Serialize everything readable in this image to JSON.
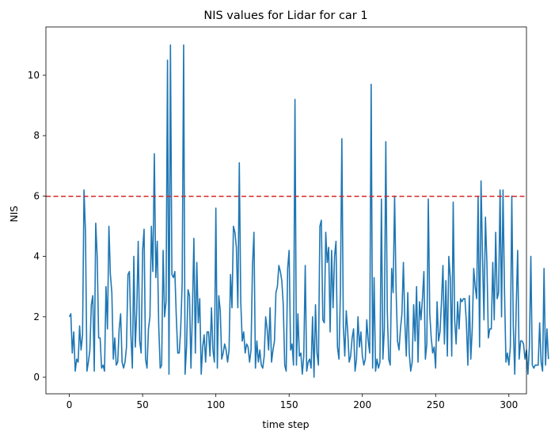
{
  "chart_data": {
    "type": "line",
    "title": "NIS values for Lidar for car 1",
    "xlabel": "time step",
    "ylabel": "NIS",
    "xlim": [
      -16,
      312
    ],
    "ylim": [
      -0.55,
      11.6
    ],
    "x_ticks": [
      0,
      50,
      100,
      150,
      200,
      250,
      300
    ],
    "y_ticks": [
      0,
      2,
      4,
      6,
      8,
      10
    ],
    "grid": false,
    "legend": "none",
    "threshold": {
      "y": 5.991,
      "style": "dashed",
      "color": "#d62728"
    },
    "series": [
      {
        "color": "#1f77b4",
        "x_start": 0,
        "x_step": 1,
        "values": [
          2.0,
          2.1,
          0.8,
          1.5,
          0.2,
          0.6,
          0.5,
          1.7,
          0.9,
          1.4,
          6.2,
          4.8,
          0.2,
          0.5,
          0.9,
          2.4,
          2.7,
          0.2,
          5.1,
          4.0,
          1.3,
          1.3,
          0.3,
          0.4,
          0.2,
          3.0,
          1.6,
          5.0,
          3.4,
          2.8,
          0.6,
          1.3,
          0.4,
          0.5,
          1.6,
          2.1,
          0.5,
          0.3,
          0.5,
          1.0,
          3.4,
          3.5,
          1.4,
          0.3,
          4.0,
          1.0,
          2.2,
          4.5,
          1.2,
          0.8,
          4.2,
          4.9,
          0.6,
          0.3,
          1.6,
          2.0,
          5.0,
          3.5,
          7.4,
          3.3,
          4.5,
          1.7,
          0.3,
          0.4,
          4.2,
          2.0,
          2.5,
          10.5,
          0.1,
          11.0,
          3.4,
          3.3,
          3.5,
          2.0,
          0.8,
          0.8,
          1.6,
          3.1,
          11.0,
          0.1,
          1.0,
          2.9,
          2.7,
          0.3,
          2.2,
          4.6,
          0.8,
          3.8,
          1.8,
          2.6,
          0.1,
          1.0,
          1.4,
          0.5,
          1.5,
          1.5,
          0.7,
          2.3,
          0.9,
          0.5,
          5.6,
          0.3,
          2.7,
          2.2,
          0.6,
          0.8,
          1.1,
          0.9,
          0.5,
          0.9,
          3.4,
          2.3,
          5.0,
          4.8,
          4.3,
          2.3,
          7.1,
          2.5,
          1.2,
          1.5,
          0.8,
          1.1,
          1.0,
          0.5,
          0.9,
          3.7,
          4.8,
          0.3,
          1.2,
          0.5,
          0.9,
          0.4,
          0.3,
          0.7,
          2.0,
          1.6,
          0.9,
          2.3,
          0.5,
          0.9,
          1.2,
          2.8,
          3.0,
          3.7,
          3.5,
          3.2,
          2.4,
          0.4,
          0.2,
          3.6,
          4.2,
          0.9,
          1.1,
          0.4,
          9.2,
          0.4,
          2.1,
          0.7,
          0.8,
          0.1,
          0.7,
          3.7,
          0.2,
          0.5,
          0.6,
          0.3,
          2.0,
          0.0,
          2.4,
          0.8,
          0.4,
          5.0,
          5.2,
          1.9,
          1.8,
          4.8,
          3.8,
          4.3,
          1.5,
          4.2,
          2.3,
          4.0,
          4.5,
          1.0,
          0.6,
          2.8,
          7.9,
          1.7,
          0.7,
          2.2,
          1.5,
          0.5,
          0.7,
          1.3,
          1.6,
          0.2,
          0.6,
          2.0,
          1.0,
          1.5,
          0.7,
          0.4,
          0.6,
          1.9,
          1.2,
          0.8,
          9.7,
          0.3,
          3.3,
          0.2,
          0.6,
          0.3,
          0.5,
          5.9,
          0.6,
          1.6,
          7.8,
          2.2,
          0.6,
          0.4,
          3.6,
          2.8,
          6.0,
          2.9,
          1.2,
          0.9,
          1.6,
          2.1,
          3.8,
          1.8,
          0.7,
          2.8,
          0.8,
          0.2,
          0.5,
          2.4,
          1.2,
          3.0,
          0.5,
          2.5,
          1.9,
          2.6,
          3.5,
          0.6,
          1.1,
          5.9,
          2.1,
          1.3,
          0.8,
          1.0,
          0.3,
          2.5,
          1.2,
          1.5,
          2.5,
          3.7,
          1.1,
          3.2,
          0.7,
          4.0,
          3.3,
          0.7,
          5.8,
          1.9,
          1.1,
          2.5,
          1.6,
          2.6,
          2.5,
          2.6,
          2.6,
          1.8,
          0.4,
          2.7,
          0.6,
          1.6,
          3.6,
          3.0,
          2.6,
          6.0,
          1.0,
          6.5,
          4.0,
          1.9,
          5.3,
          3.8,
          1.3,
          1.6,
          1.6,
          3.8,
          1.9,
          4.8,
          2.6,
          2.8,
          6.2,
          2.0,
          6.2,
          2.9,
          0.5,
          0.8,
          0.4,
          1.0,
          6.0,
          1.7,
          0.1,
          2.3,
          4.2,
          0.6,
          1.2,
          1.2,
          1.1,
          0.6,
          0.9,
          0.1,
          1.0,
          4.0,
          0.4,
          0.3,
          0.4,
          0.4,
          0.4,
          1.8,
          0.5,
          0.2,
          3.6,
          0.4,
          1.6,
          0.6
        ]
      }
    ]
  }
}
